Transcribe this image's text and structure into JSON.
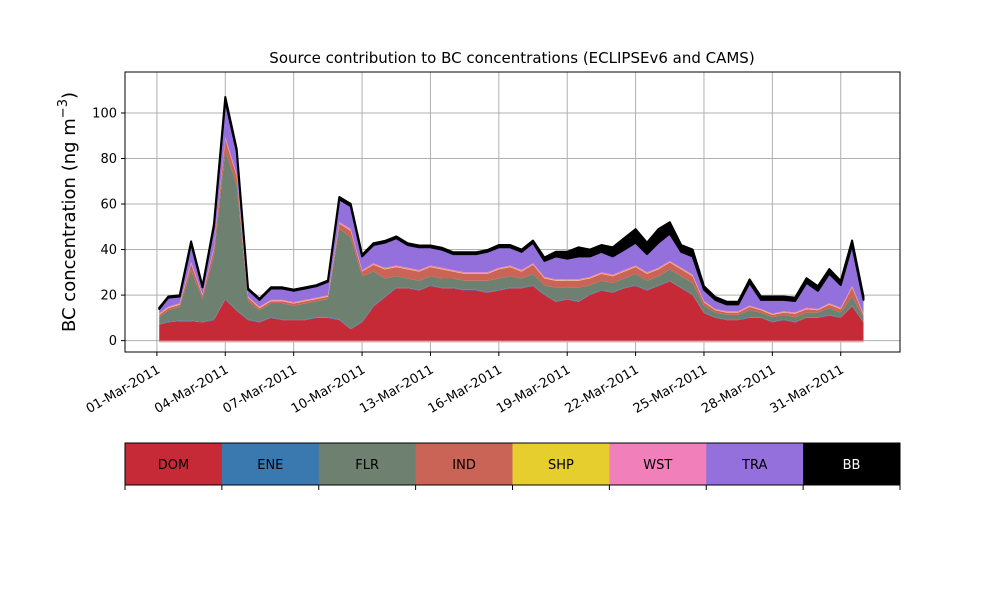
{
  "chart_data": {
    "type": "area",
    "stacked": true,
    "title": "Source contribution to BC concentrations (ECLIPSEv6 and CAMS)",
    "xlabel": "",
    "ylabel": "BC concentration (ng m",
    "ylabel_superscript": "−3",
    "ylabel_suffix": ")",
    "xlim_days": [
      -1.4,
      32.6
    ],
    "ylim": [
      -5,
      118
    ],
    "grid": true,
    "x_ticks": [
      {
        "day": 0,
        "label": "01-Mar-2011"
      },
      {
        "day": 3,
        "label": "04-Mar-2011"
      },
      {
        "day": 6,
        "label": "07-Mar-2011"
      },
      {
        "day": 9,
        "label": "10-Mar-2011"
      },
      {
        "day": 12,
        "label": "13-Mar-2011"
      },
      {
        "day": 15,
        "label": "16-Mar-2011"
      },
      {
        "day": 18,
        "label": "19-Mar-2011"
      },
      {
        "day": 21,
        "label": "22-Mar-2011"
      },
      {
        "day": 24,
        "label": "25-Mar-2011"
      },
      {
        "day": 27,
        "label": "28-Mar-2011"
      },
      {
        "day": 30,
        "label": "31-Mar-2011"
      }
    ],
    "y_ticks": [
      0,
      20,
      40,
      60,
      80,
      100
    ],
    "x_days": [
      0.1,
      0.5,
      1.0,
      1.5,
      2.0,
      2.5,
      3.0,
      3.5,
      4.0,
      4.5,
      5.0,
      5.5,
      6.0,
      6.5,
      7.0,
      7.5,
      8.0,
      8.5,
      9.0,
      9.5,
      10.0,
      10.5,
      11.0,
      11.5,
      12.0,
      12.5,
      13.0,
      13.5,
      14.0,
      14.5,
      15.0,
      15.5,
      16.0,
      16.5,
      17.0,
      17.5,
      18.0,
      18.5,
      19.0,
      19.5,
      20.0,
      20.5,
      21.0,
      21.5,
      22.0,
      22.5,
      23.0,
      23.5,
      24.0,
      24.5,
      25.0,
      25.5,
      26.0,
      26.5,
      27.0,
      27.5,
      28.0,
      28.5,
      29.0,
      29.5,
      30.0,
      30.5,
      31.0
    ],
    "series": [
      {
        "name": "DOM",
        "color": "#c62a36",
        "values": [
          7,
          8,
          8.5,
          8.5,
          8,
          9,
          18,
          13,
          9,
          8,
          10,
          9,
          9,
          9,
          10,
          10,
          9,
          5,
          8,
          15,
          19,
          23,
          23,
          22,
          24,
          23,
          23,
          22,
          22,
          21,
          22,
          23,
          23,
          24,
          20,
          17,
          18,
          17,
          20,
          22,
          21,
          23,
          24,
          22,
          24,
          26,
          23,
          20,
          12,
          10,
          9,
          9,
          10,
          10,
          8,
          9,
          8,
          10,
          10,
          11,
          10,
          15,
          8
        ]
      },
      {
        "name": "ENE",
        "color": "#3a78b0",
        "values": [
          0.3,
          0.3,
          0.3,
          0.3,
          0.3,
          0.3,
          0.4,
          0.3,
          0.3,
          0.3,
          0.3,
          0.3,
          0.3,
          0.3,
          0.3,
          0.3,
          0.3,
          0.3,
          0.3,
          0.3,
          0.3,
          0.3,
          0.3,
          0.3,
          0.3,
          0.3,
          0.3,
          0.3,
          0.3,
          0.3,
          0.3,
          0.3,
          0.3,
          0.3,
          0.3,
          0.3,
          0.3,
          0.3,
          0.3,
          0.3,
          0.3,
          0.3,
          0.3,
          0.3,
          0.3,
          0.3,
          0.3,
          0.3,
          0.3,
          0.3,
          0.3,
          0.3,
          0.3,
          0.3,
          0.3,
          0.3,
          0.3,
          0.3,
          0.3,
          0.3,
          0.3,
          0.3,
          0.3
        ]
      },
      {
        "name": "FLR",
        "color": "#6e8070",
        "values": [
          3,
          5,
          6,
          22,
          10,
          28,
          65,
          55,
          8,
          5,
          6,
          7,
          6,
          7,
          7,
          8,
          40,
          40,
          20,
          15,
          8,
          5,
          4,
          4,
          4,
          4,
          4,
          4,
          4,
          5,
          5,
          5,
          4,
          5,
          4,
          6,
          5,
          6,
          4,
          4,
          4,
          4,
          5,
          4,
          4,
          5,
          5,
          5,
          3,
          2,
          2,
          2,
          3,
          2,
          2,
          2,
          2,
          2,
          2,
          3,
          2,
          4,
          2
        ]
      },
      {
        "name": "IND",
        "color": "#c96456",
        "values": [
          1,
          1,
          1,
          3,
          1.5,
          3,
          5,
          4,
          1.5,
          1,
          1,
          1,
          1,
          1,
          1,
          1,
          2,
          3,
          2,
          3,
          4,
          4,
          4,
          4,
          4,
          4,
          3,
          3,
          3,
          3,
          4,
          4,
          3,
          4,
          3,
          3,
          3,
          3,
          3,
          3,
          3,
          3,
          3,
          3,
          3,
          3,
          3,
          3,
          1.5,
          1,
          1,
          1,
          1.5,
          1,
          1,
          1,
          1.5,
          1.5,
          1,
          1.5,
          1.5,
          4,
          1
        ]
      },
      {
        "name": "SHP",
        "color": "#e6ce2e",
        "values": [
          0.2,
          0.2,
          0.2,
          0.2,
          0.2,
          0.2,
          0.3,
          0.2,
          0.2,
          0.2,
          0.2,
          0.2,
          0.2,
          0.2,
          0.2,
          0.2,
          0.2,
          0.2,
          0.2,
          0.2,
          0.2,
          0.2,
          0.2,
          0.2,
          0.2,
          0.2,
          0.2,
          0.2,
          0.2,
          0.2,
          0.2,
          0.2,
          0.2,
          0.2,
          0.2,
          0.2,
          0.2,
          0.2,
          0.2,
          0.2,
          0.2,
          0.2,
          0.2,
          0.2,
          0.2,
          0.2,
          0.2,
          0.2,
          0.2,
          0.2,
          0.2,
          0.2,
          0.2,
          0.2,
          0.2,
          0.2,
          0.2,
          0.2,
          0.2,
          0.2,
          0.2,
          0.2,
          0.2
        ]
      },
      {
        "name": "WST",
        "color": "#f07fba",
        "values": [
          0.4,
          0.4,
          0.4,
          0.6,
          0.4,
          0.6,
          0.8,
          0.7,
          0.4,
          0.4,
          0.4,
          0.4,
          0.4,
          0.4,
          0.4,
          0.4,
          0.6,
          0.6,
          0.5,
          0.5,
          0.5,
          0.5,
          0.5,
          0.5,
          0.5,
          0.5,
          0.5,
          0.5,
          0.5,
          0.5,
          0.5,
          0.5,
          0.5,
          0.5,
          0.5,
          0.5,
          0.5,
          0.5,
          0.5,
          0.5,
          0.5,
          0.5,
          0.5,
          0.5,
          0.5,
          0.5,
          0.5,
          0.5,
          0.4,
          0.4,
          0.4,
          0.4,
          0.4,
          0.4,
          0.4,
          0.4,
          0.4,
          0.4,
          0.4,
          0.4,
          0.4,
          0.5,
          0.4
        ]
      },
      {
        "name": "TRA",
        "color": "#9370db",
        "values": [
          2,
          4,
          3,
          8,
          3,
          9,
          16,
          10,
          3,
          3,
          5,
          5,
          5,
          5,
          5,
          6,
          10,
          10,
          6,
          8,
          11,
          12,
          10,
          10,
          8,
          8,
          7,
          8,
          8,
          9,
          9,
          8,
          8,
          9,
          7,
          10,
          9,
          10,
          9,
          9,
          8,
          9,
          10,
          8,
          11,
          12,
          7,
          8,
          5,
          4,
          3,
          3,
          10,
          4,
          6,
          5,
          5,
          11,
          8,
          13,
          10,
          18,
          6
        ]
      },
      {
        "name": "BB",
        "color": "#000000",
        "values": [
          0.5,
          0.5,
          0.5,
          1,
          0.5,
          1,
          1.5,
          1,
          0.5,
          0.5,
          0.5,
          0.5,
          0.5,
          0.5,
          0.5,
          0.5,
          1,
          1,
          0.7,
          0.8,
          0.8,
          0.8,
          0.8,
          0.8,
          0.8,
          0.8,
          0.8,
          0.8,
          0.8,
          0.8,
          1,
          1,
          1,
          1,
          1.5,
          2,
          3,
          4,
          3,
          3,
          4,
          5,
          6,
          5,
          6,
          5,
          3,
          3,
          1.5,
          1.2,
          1.2,
          1.2,
          1.5,
          1.5,
          1.5,
          1.5,
          1.5,
          2,
          2,
          2,
          1.8,
          2,
          1.5
        ]
      }
    ],
    "legend": {
      "placement": "bottom",
      "entries": [
        "DOM",
        "ENE",
        "FLR",
        "IND",
        "SHP",
        "WST",
        "TRA",
        "BB"
      ]
    }
  }
}
